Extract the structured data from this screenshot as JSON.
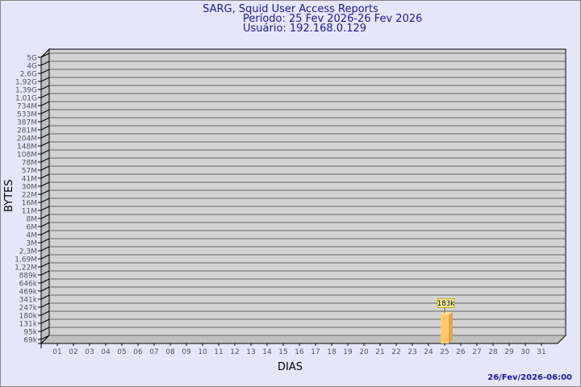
{
  "chart_data": {
    "type": "bar",
    "title": "SARG, Squid User Access Reports",
    "subtitle": [
      "Período: 25 Fev 2026-26 Fev 2026",
      "Usuário: 192.168.0.129"
    ],
    "xlabel": "DIAS",
    "ylabel": "BYTES",
    "y_scale": "log",
    "y_tick_labels": [
      "5G",
      "4G",
      "2,6G",
      "1,92G",
      "1,39G",
      "1,01G",
      "734M",
      "533M",
      "387M",
      "281M",
      "204M",
      "148M",
      "108M",
      "78M",
      "57M",
      "41M",
      "30M",
      "22M",
      "16M",
      "11M",
      "8M",
      "6M",
      "4M",
      "3M",
      "2,3M",
      "1,69M",
      "1,22M",
      "889k",
      "646k",
      "469k",
      "341k",
      "247k",
      "180k",
      "131k",
      "95k",
      "69k"
    ],
    "categories": [
      "01",
      "02",
      "03",
      "04",
      "05",
      "06",
      "07",
      "08",
      "09",
      "10",
      "11",
      "12",
      "13",
      "14",
      "15",
      "16",
      "17",
      "18",
      "19",
      "20",
      "21",
      "22",
      "23",
      "24",
      "25",
      "26",
      "27",
      "28",
      "29",
      "30",
      "31"
    ],
    "bars": [
      {
        "category": "25",
        "value": 183000,
        "label": "183k"
      }
    ],
    "grid": true,
    "colors": {
      "bar": "#ffc86e",
      "bar_side": "#e0a54e",
      "wall": "#d3d3d3",
      "title": "#1a1a9a"
    }
  },
  "footer": {
    "timestamp": "26/Fev/2026-06:00"
  }
}
